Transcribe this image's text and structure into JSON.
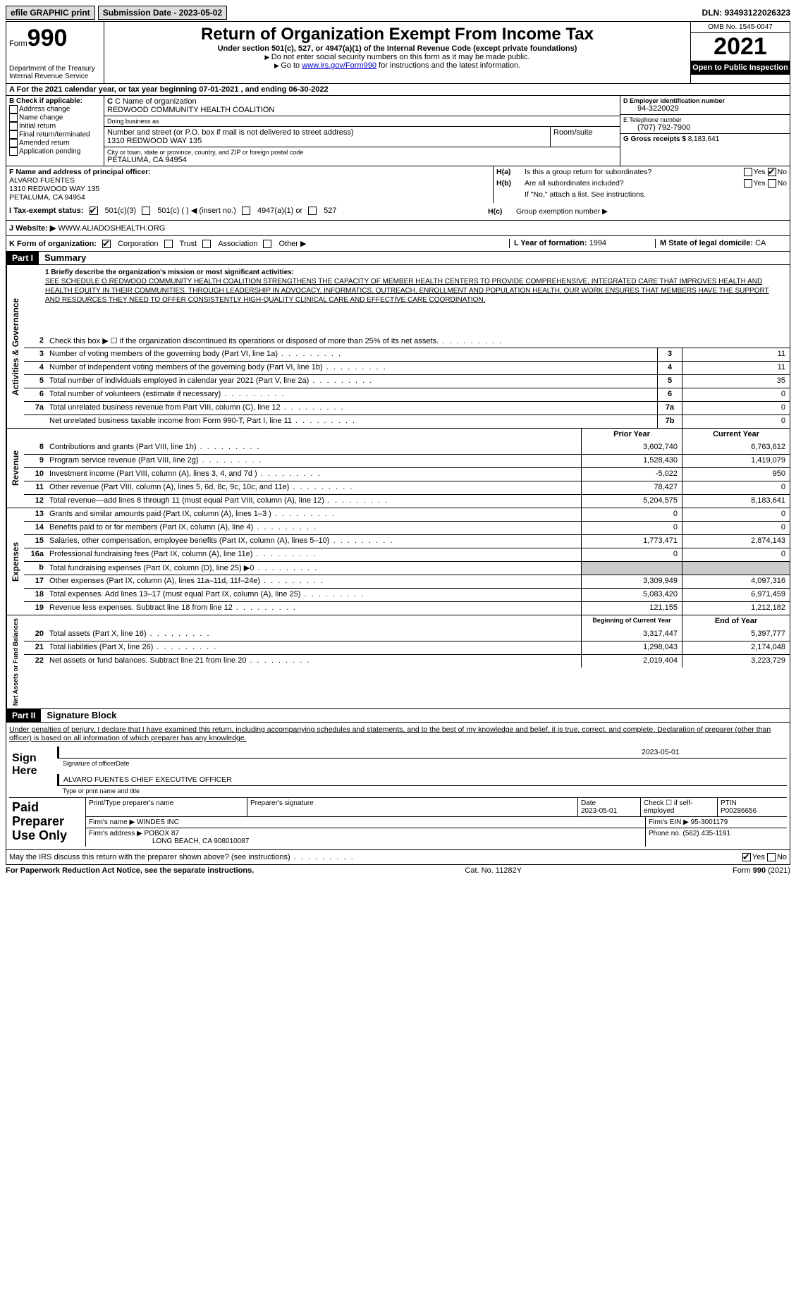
{
  "topbar": {
    "efile": "efile GRAPHIC print",
    "sub_date_label": "Submission Date - 2023-05-02",
    "dln_label": "DLN:",
    "dln": "93493122026323"
  },
  "header": {
    "form_label": "Form",
    "form_no": "990",
    "dept": "Department of the Treasury Internal Revenue Service",
    "title": "Return of Organization Exempt From Income Tax",
    "subtitle": "Under section 501(c), 527, or 4947(a)(1) of the Internal Revenue Code (except private foundations)",
    "note1": "Do not enter social security numbers on this form as it may be made public.",
    "note2_pre": "Go to ",
    "note2_link": "www.irs.gov/Form990",
    "note2_post": " for instructions and the latest information.",
    "omb": "OMB No. 1545-0047",
    "year": "2021",
    "open_pub": "Open to Public Inspection"
  },
  "row_a": "A For the 2021 calendar year, or tax year beginning 07-01-2021    , and ending 06-30-2022",
  "col_b": {
    "label": "B Check if applicable:",
    "items": [
      "Address change",
      "Name change",
      "Initial return",
      "Final return/terminated",
      "Amended return",
      "Application pending"
    ]
  },
  "col_c": {
    "name_lbl": "C Name of organization",
    "name": "REDWOOD COMMUNITY HEALTH COALITION",
    "dba_lbl": "Doing business as",
    "dba": "",
    "street_lbl": "Number and street (or P.O. box if mail is not delivered to street address)",
    "street": "1310 REDWOOD WAY 135",
    "room_lbl": "Room/suite",
    "city_lbl": "City or town, state or province, country, and ZIP or foreign postal code",
    "city": "PETALUMA, CA  94954"
  },
  "col_d": {
    "ein_lbl": "D Employer identification number",
    "ein": "94-3220029",
    "tel_lbl": "E Telephone number",
    "tel": "(707) 792-7900",
    "gross_lbl": "G Gross receipts $",
    "gross": "8,183,641"
  },
  "f": {
    "lbl": "F  Name and address of principal officer:",
    "name": "ALVARO FUENTES",
    "addr1": "1310 REDWOOD WAY 135",
    "addr2": "PETALUMA, CA  94954"
  },
  "h": {
    "ha": "Is this a group return for subordinates?",
    "hb": "Are all subordinates included?",
    "hb_note": "If \"No,\" attach a list. See instructions.",
    "hc": "Group exemption number ▶",
    "yes": "Yes",
    "no": "No"
  },
  "i": {
    "lbl": "I  Tax-exempt status:",
    "opts": [
      "501(c)(3)",
      "501(c) (  ) ◀ (insert no.)",
      "4947(a)(1) or",
      "527"
    ]
  },
  "j": {
    "lbl": "J  Website: ▶",
    "val": "WWW.ALIADOSHEALTH.ORG"
  },
  "k": {
    "lbl": "K Form of organization:",
    "opts": [
      "Corporation",
      "Trust",
      "Association",
      "Other ▶"
    ]
  },
  "l": {
    "lbl": "L Year of formation:",
    "val": "1994"
  },
  "m": {
    "lbl": "M State of legal domicile:",
    "val": "CA"
  },
  "part1": {
    "hdr": "Part I",
    "title": "Summary"
  },
  "mission": {
    "prompt": "1  Briefly describe the organization's mission or most significant activities:",
    "text": "SEE SCHEDULE O.REDWOOD COMMUNITY HEALTH COALITION STRENGTHENS THE CAPACITY OF MEMBER HEALTH CENTERS TO PROVIDE COMPREHENSIVE, INTEGRATED CARE THAT IMPROVES HEALTH AND HEALTH EQUITY IN THEIR COMMUNITIES. THROUGH LEADERSHIP IN ADVOCACY, INFORMATICS, OUTREACH, ENROLLMENT AND POPULATION HEALTH, OUR WORK ENSURES THAT MEMBERS HAVE THE SUPPORT AND RESOURCES THEY NEED TO OFFER CONSISTENTLY HIGH-QUALITY CLINICAL CARE AND EFFECTIVE CARE COORDINATION."
  },
  "gov_lines": [
    {
      "n": "2",
      "d": "Check this box ▶ ☐  if the organization discontinued its operations or disposed of more than 25% of its net assets.",
      "box": "",
      "v": ""
    },
    {
      "n": "3",
      "d": "Number of voting members of the governing body (Part VI, line 1a)",
      "box": "3",
      "v": "11"
    },
    {
      "n": "4",
      "d": "Number of independent voting members of the governing body (Part VI, line 1b)",
      "box": "4",
      "v": "11"
    },
    {
      "n": "5",
      "d": "Total number of individuals employed in calendar year 2021 (Part V, line 2a)",
      "box": "5",
      "v": "35"
    },
    {
      "n": "6",
      "d": "Total number of volunteers (estimate if necessary)",
      "box": "6",
      "v": "0"
    },
    {
      "n": "7a",
      "d": "Total unrelated business revenue from Part VIII, column (C), line 12",
      "box": "7a",
      "v": "0"
    },
    {
      "n": "",
      "d": "Net unrelated business taxable income from Form 990-T, Part I, line 11",
      "box": "7b",
      "v": "0"
    }
  ],
  "rev_hdr": {
    "py": "Prior Year",
    "cy": "Current Year"
  },
  "rev_lines": [
    {
      "n": "8",
      "d": "Contributions and grants (Part VIII, line 1h)",
      "py": "3,602,740",
      "cy": "6,763,612"
    },
    {
      "n": "9",
      "d": "Program service revenue (Part VIII, line 2g)",
      "py": "1,528,430",
      "cy": "1,419,079"
    },
    {
      "n": "10",
      "d": "Investment income (Part VIII, column (A), lines 3, 4, and 7d )",
      "py": "-5,022",
      "cy": "950"
    },
    {
      "n": "11",
      "d": "Other revenue (Part VIII, column (A), lines 5, 6d, 8c, 9c, 10c, and 11e)",
      "py": "78,427",
      "cy": "0"
    },
    {
      "n": "12",
      "d": "Total revenue—add lines 8 through 11 (must equal Part VIII, column (A), line 12)",
      "py": "5,204,575",
      "cy": "8,183,641"
    }
  ],
  "exp_lines": [
    {
      "n": "13",
      "d": "Grants and similar amounts paid (Part IX, column (A), lines 1–3 )",
      "py": "0",
      "cy": "0"
    },
    {
      "n": "14",
      "d": "Benefits paid to or for members (Part IX, column (A), line 4)",
      "py": "0",
      "cy": "0"
    },
    {
      "n": "15",
      "d": "Salaries, other compensation, employee benefits (Part IX, column (A), lines 5–10)",
      "py": "1,773,471",
      "cy": "2,874,143"
    },
    {
      "n": "16a",
      "d": "Professional fundraising fees (Part IX, column (A), line 11e)",
      "py": "0",
      "cy": "0"
    },
    {
      "n": "b",
      "d": "Total fundraising expenses (Part IX, column (D), line 25) ▶0",
      "py": "",
      "cy": "",
      "gray": true
    },
    {
      "n": "17",
      "d": "Other expenses (Part IX, column (A), lines 11a–11d, 11f–24e)",
      "py": "3,309,949",
      "cy": "4,097,316"
    },
    {
      "n": "18",
      "d": "Total expenses. Add lines 13–17 (must equal Part IX, column (A), line 25)",
      "py": "5,083,420",
      "cy": "6,971,459"
    },
    {
      "n": "19",
      "d": "Revenue less expenses. Subtract line 18 from line 12",
      "py": "121,155",
      "cy": "1,212,182"
    }
  ],
  "na_hdr": {
    "py": "Beginning of Current Year",
    "cy": "End of Year"
  },
  "na_lines": [
    {
      "n": "20",
      "d": "Total assets (Part X, line 16)",
      "py": "3,317,447",
      "cy": "5,397,777"
    },
    {
      "n": "21",
      "d": "Total liabilities (Part X, line 26)",
      "py": "1,298,043",
      "cy": "2,174,048"
    },
    {
      "n": "22",
      "d": "Net assets or fund balances. Subtract line 21 from line 20",
      "py": "2,019,404",
      "cy": "3,223,729"
    }
  ],
  "vtabs": {
    "gov": "Activities & Governance",
    "rev": "Revenue",
    "exp": "Expenses",
    "na": "Net Assets or Fund Balances"
  },
  "part2": {
    "hdr": "Part II",
    "title": "Signature Block"
  },
  "sig": {
    "decl": "Under penalties of perjury, I declare that I have examined this return, including accompanying schedules and statements, and to the best of my knowledge and belief, it is true, correct, and complete. Declaration of preparer (other than officer) is based on all information of which preparer has any knowledge.",
    "sign_here": "Sign Here",
    "sig_officer": "Signature of officer",
    "date": "Date",
    "date_val": "2023-05-01",
    "name_title": "ALVARO FUENTES  CHIEF EXECUTIVE OFFICER",
    "type_name": "Type or print name and title"
  },
  "prep": {
    "title": "Paid Preparer Use Only",
    "h": [
      "Print/Type preparer's name",
      "Preparer's signature",
      "Date",
      "Check ☐ if self-employed",
      "PTIN"
    ],
    "date": "2023-05-01",
    "ptin": "P00286656",
    "firm_lbl": "Firm's name   ▶",
    "firm": "WINDES INC",
    "ein_lbl": "Firm's EIN ▶",
    "ein": "95-3001179",
    "addr_lbl": "Firm's address ▶",
    "addr1": "POBOX 87",
    "addr2": "LONG BEACH, CA  908010087",
    "phone_lbl": "Phone no.",
    "phone": "(562) 435-1191"
  },
  "discuss": {
    "q": "May the IRS discuss this return with the preparer shown above? (see instructions)",
    "yes": "Yes",
    "no": "No"
  },
  "footer": {
    "l": "For Paperwork Reduction Act Notice, see the separate instructions.",
    "c": "Cat. No. 11282Y",
    "r": "Form 990 (2021)"
  }
}
